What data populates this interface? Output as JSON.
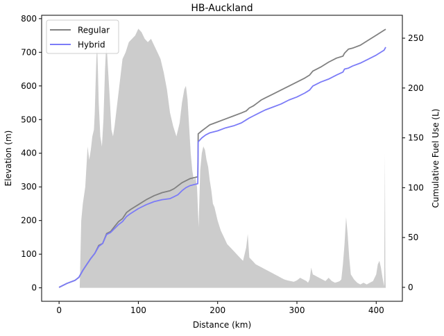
{
  "chart_data": {
    "type": "line",
    "title": "HB-Auckland",
    "xlabel": "Distance (km)",
    "ylabel": "Elevation (m)",
    "y2label": "Cumulative Fuel Use (L)",
    "xlim": [
      -22,
      433
    ],
    "ylim": [
      -40,
      810
    ],
    "y2lim": [
      -14,
      273
    ],
    "xticks": [
      0,
      100,
      200,
      300,
      400
    ],
    "yticks": [
      0,
      100,
      200,
      300,
      400,
      500,
      600,
      700,
      800
    ],
    "y2ticks": [
      0,
      50,
      100,
      150,
      200,
      250
    ],
    "grid": false,
    "legend_position": "top-left",
    "elevation": {
      "color": "#cccccc",
      "x": [
        0,
        10,
        20,
        26,
        28,
        30,
        33,
        36,
        38,
        40,
        42,
        44,
        45,
        46,
        47,
        48,
        49,
        50,
        52,
        54,
        56,
        58,
        59,
        60,
        62,
        64,
        66,
        68,
        70,
        72,
        74,
        76,
        78,
        80,
        84,
        88,
        92,
        96,
        100,
        104,
        108,
        112,
        116,
        120,
        124,
        128,
        132,
        136,
        140,
        144,
        148,
        152,
        155,
        158,
        160,
        162,
        164,
        166,
        168,
        170,
        172,
        174,
        176,
        178,
        180,
        182,
        184,
        186,
        188,
        190,
        192,
        194,
        196,
        198,
        200,
        204,
        208,
        212,
        216,
        220,
        224,
        228,
        232,
        236,
        238,
        240,
        244,
        248,
        252,
        256,
        260,
        264,
        268,
        272,
        276,
        280,
        284,
        288,
        292,
        296,
        300,
        304,
        308,
        312,
        314,
        316,
        318,
        320,
        324,
        328,
        332,
        336,
        340,
        344,
        348,
        352,
        354,
        356,
        358,
        360,
        362,
        364,
        366,
        368,
        372,
        376,
        380,
        384,
        388,
        392,
        396,
        400,
        402,
        404,
        406,
        408,
        410,
        411,
        411.5,
        412
      ],
      "values": [
        0,
        0,
        0,
        0,
        200,
        250,
        300,
        420,
        380,
        410,
        450,
        470,
        520,
        600,
        680,
        720,
        650,
        550,
        450,
        420,
        500,
        650,
        700,
        720,
        640,
        560,
        470,
        450,
        480,
        520,
        560,
        600,
        640,
        680,
        700,
        730,
        740,
        750,
        770,
        760,
        740,
        730,
        740,
        720,
        700,
        680,
        640,
        590,
        520,
        480,
        450,
        490,
        550,
        590,
        600,
        560,
        480,
        400,
        350,
        320,
        330,
        300,
        180,
        350,
        400,
        420,
        410,
        380,
        360,
        320,
        290,
        250,
        240,
        220,
        200,
        170,
        150,
        130,
        120,
        110,
        100,
        90,
        80,
        120,
        160,
        90,
        80,
        70,
        65,
        60,
        55,
        50,
        45,
        40,
        35,
        30,
        25,
        22,
        20,
        18,
        22,
        30,
        25,
        20,
        15,
        25,
        60,
        40,
        35,
        30,
        25,
        20,
        30,
        20,
        15,
        18,
        20,
        25,
        70,
        130,
        210,
        160,
        90,
        40,
        25,
        15,
        10,
        15,
        10,
        15,
        20,
        40,
        70,
        80,
        60,
        30,
        5,
        400,
        60,
        0
      ]
    },
    "series": [
      {
        "name": "Regular",
        "color": "#808080",
        "x": [
          0,
          10,
          20,
          25,
          30,
          35,
          40,
          45,
          50,
          55,
          60,
          65,
          70,
          75,
          80,
          85,
          90,
          100,
          110,
          120,
          130,
          140,
          145,
          150,
          155,
          160,
          165,
          170,
          175,
          175.5,
          180,
          185,
          190,
          200,
          210,
          220,
          230,
          236,
          240,
          245,
          250,
          255,
          260,
          270,
          280,
          290,
          300,
          310,
          316,
          320,
          330,
          340,
          350,
          358,
          360,
          365,
          370,
          380,
          390,
          400,
          410,
          412
        ],
        "values": [
          0,
          4,
          7,
          10,
          17,
          23,
          29,
          34,
          42,
          44,
          54,
          56,
          61,
          66,
          69,
          75,
          78,
          83,
          88,
          92,
          95,
          97,
          99,
          102,
          105,
          107,
          109,
          110,
          111,
          154,
          157,
          160,
          163,
          166,
          169,
          172,
          175,
          177,
          180,
          182,
          185,
          188,
          190,
          194,
          198,
          202,
          206,
          210,
          213,
          217,
          221,
          226,
          230,
          232,
          235,
          239,
          240,
          243,
          248,
          253,
          258,
          259
        ]
      },
      {
        "name": "Hybrid",
        "color": "#7b7bf7",
        "x": [
          0,
          10,
          20,
          25,
          30,
          35,
          40,
          45,
          50,
          55,
          60,
          65,
          70,
          75,
          80,
          85,
          90,
          100,
          110,
          120,
          130,
          140,
          145,
          150,
          155,
          160,
          165,
          170,
          175,
          175.5,
          180,
          185,
          190,
          200,
          210,
          220,
          230,
          236,
          240,
          245,
          250,
          255,
          260,
          270,
          280,
          290,
          300,
          310,
          316,
          320,
          330,
          340,
          350,
          358,
          360,
          365,
          370,
          380,
          390,
          400,
          410,
          412
        ],
        "values": [
          0,
          4,
          7,
          10,
          17,
          23,
          29,
          34,
          41,
          44,
          53,
          55,
          59,
          63,
          66,
          71,
          74,
          79,
          83,
          86,
          88,
          89,
          91,
          93,
          97,
          100,
          102,
          103,
          104,
          146,
          150,
          153,
          155,
          157,
          160,
          162,
          165,
          168,
          170,
          172,
          174,
          176,
          178,
          181,
          184,
          188,
          191,
          195,
          198,
          202,
          206,
          209,
          213,
          216,
          219,
          220,
          222,
          225,
          229,
          233,
          238,
          241
        ]
      }
    ]
  }
}
